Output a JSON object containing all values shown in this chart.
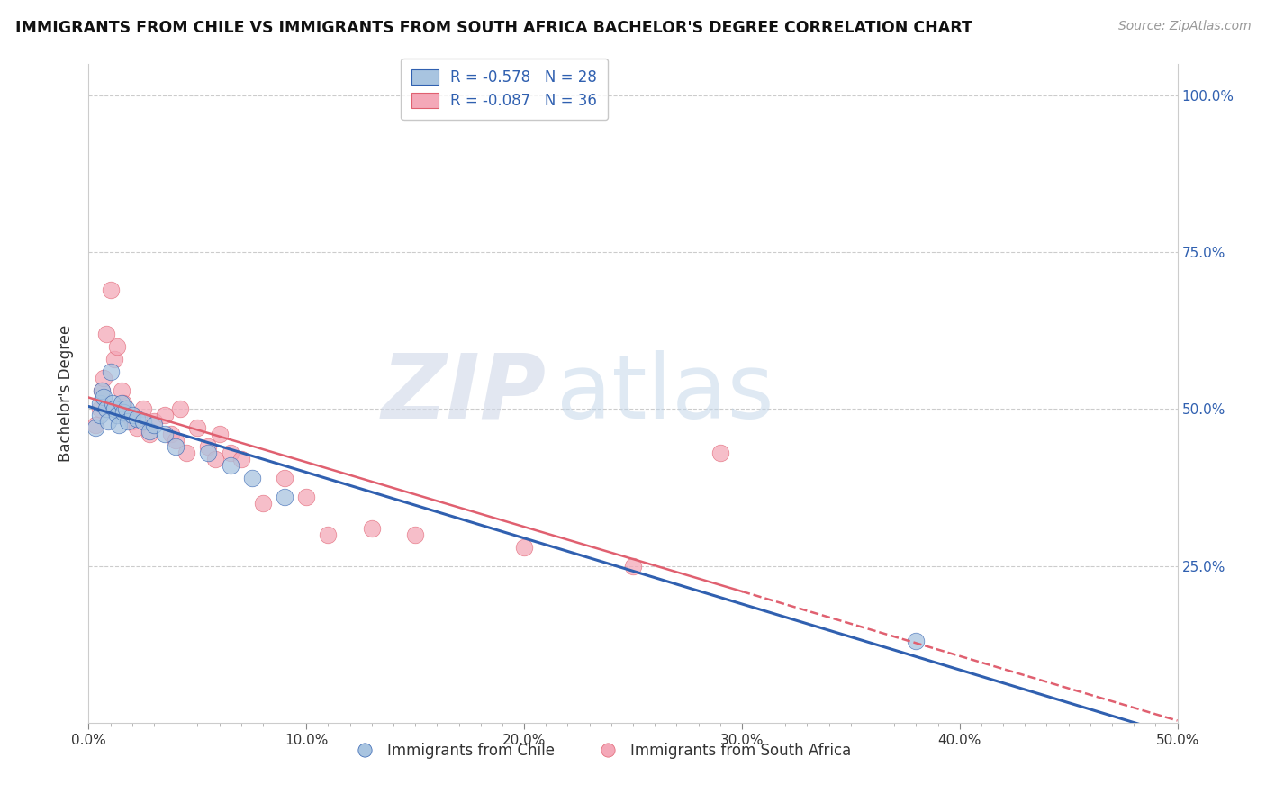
{
  "title": "IMMIGRANTS FROM CHILE VS IMMIGRANTS FROM SOUTH AFRICA BACHELOR'S DEGREE CORRELATION CHART",
  "source": "Source: ZipAtlas.com",
  "ylabel": "Bachelor's Degree",
  "xlim": [
    0.0,
    0.5
  ],
  "ylim": [
    0.0,
    1.05
  ],
  "xtick_labels": [
    "0.0%",
    "",
    "",
    "",
    "",
    "",
    "",
    "",
    "",
    "",
    "10.0%",
    "",
    "",
    "",
    "",
    "",
    "",
    "",
    "",
    "",
    "20.0%",
    "",
    "",
    "",
    "",
    "",
    "",
    "",
    "",
    "",
    "30.0%",
    "",
    "",
    "",
    "",
    "",
    "",
    "",
    "",
    "",
    "40.0%",
    "",
    "",
    "",
    "",
    "",
    "",
    "",
    "",
    "",
    "50.0%"
  ],
  "xtick_values": [
    0.0,
    0.01,
    0.02,
    0.03,
    0.04,
    0.05,
    0.06,
    0.07,
    0.08,
    0.09,
    0.1,
    0.11,
    0.12,
    0.13,
    0.14,
    0.15,
    0.16,
    0.17,
    0.18,
    0.19,
    0.2,
    0.21,
    0.22,
    0.23,
    0.24,
    0.25,
    0.26,
    0.27,
    0.28,
    0.29,
    0.3,
    0.31,
    0.32,
    0.33,
    0.34,
    0.35,
    0.36,
    0.37,
    0.38,
    0.39,
    0.4,
    0.41,
    0.42,
    0.43,
    0.44,
    0.45,
    0.46,
    0.47,
    0.48,
    0.49,
    0.5
  ],
  "xtick_major_labels": [
    "0.0%",
    "10.0%",
    "20.0%",
    "30.0%",
    "40.0%",
    "50.0%"
  ],
  "xtick_major_values": [
    0.0,
    0.1,
    0.2,
    0.3,
    0.4,
    0.5
  ],
  "ytick_labels": [
    "25.0%",
    "50.0%",
    "75.0%",
    "100.0%"
  ],
  "ytick_values": [
    0.25,
    0.5,
    0.75,
    1.0
  ],
  "legend_r_chile": "R = -0.578",
  "legend_n_chile": "N = 28",
  "legend_r_sa": "R = -0.087",
  "legend_n_sa": "N = 36",
  "chile_color": "#a8c4e0",
  "sa_color": "#f4a8b8",
  "chile_line_color": "#3060b0",
  "sa_line_color": "#e06070",
  "background_color": "#ffffff",
  "watermark_zip": "ZIP",
  "watermark_atlas": "atlas",
  "chile_x": [
    0.003,
    0.005,
    0.005,
    0.006,
    0.007,
    0.008,
    0.009,
    0.01,
    0.011,
    0.012,
    0.013,
    0.014,
    0.015,
    0.016,
    0.017,
    0.018,
    0.02,
    0.022,
    0.025,
    0.028,
    0.03,
    0.035,
    0.04,
    0.055,
    0.065,
    0.075,
    0.09,
    0.38
  ],
  "chile_y": [
    0.47,
    0.49,
    0.51,
    0.53,
    0.52,
    0.5,
    0.48,
    0.56,
    0.51,
    0.5,
    0.49,
    0.475,
    0.51,
    0.495,
    0.5,
    0.48,
    0.49,
    0.485,
    0.48,
    0.465,
    0.475,
    0.46,
    0.44,
    0.43,
    0.41,
    0.39,
    0.36,
    0.13
  ],
  "sa_x": [
    0.003,
    0.005,
    0.006,
    0.007,
    0.008,
    0.01,
    0.012,
    0.013,
    0.015,
    0.016,
    0.018,
    0.02,
    0.022,
    0.025,
    0.028,
    0.03,
    0.035,
    0.038,
    0.04,
    0.042,
    0.045,
    0.05,
    0.055,
    0.058,
    0.06,
    0.065,
    0.07,
    0.08,
    0.09,
    0.1,
    0.11,
    0.13,
    0.15,
    0.2,
    0.25,
    0.29
  ],
  "sa_y": [
    0.475,
    0.5,
    0.53,
    0.55,
    0.62,
    0.69,
    0.58,
    0.6,
    0.53,
    0.51,
    0.49,
    0.48,
    0.47,
    0.5,
    0.46,
    0.48,
    0.49,
    0.46,
    0.45,
    0.5,
    0.43,
    0.47,
    0.44,
    0.42,
    0.46,
    0.43,
    0.42,
    0.35,
    0.39,
    0.36,
    0.3,
    0.31,
    0.3,
    0.28,
    0.25,
    0.43
  ]
}
